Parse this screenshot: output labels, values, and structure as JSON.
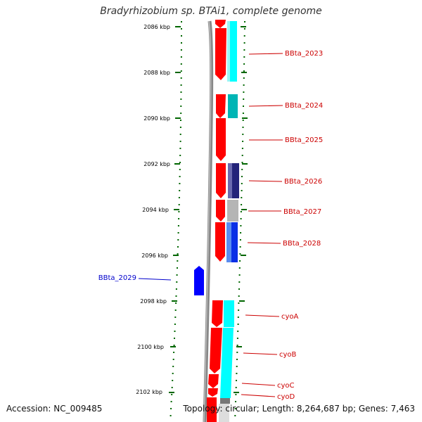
{
  "title": "Bradyrhizobium sp. BTAi1, complete genome",
  "accession": "Accession: NC_009485",
  "topology": "Topology: circular; Length: 8,264,687 bp; Genes: 7,463",
  "ticks": [
    "2086 kbp",
    "2088 kbp",
    "2090 kbp",
    "2092 kbp",
    "2094 kbp",
    "2096 kbp",
    "2098 kbp",
    "2100 kbp",
    "2102 kbp"
  ],
  "genes_right": [
    {
      "label": "BBta_2023",
      "color": "#cc0000"
    },
    {
      "label": "BBta_2024",
      "color": "#cc0000"
    },
    {
      "label": "BBta_2025",
      "color": "#cc0000"
    },
    {
      "label": "BBta_2026",
      "color": "#cc0000"
    },
    {
      "label": "BBta_2027",
      "color": "#cc0000"
    },
    {
      "label": "BBta_2028",
      "color": "#cc0000"
    },
    {
      "label": "cyoA",
      "color": "#cc0000"
    },
    {
      "label": "cyoB",
      "color": "#cc0000"
    },
    {
      "label": "cyoC",
      "color": "#cc0000"
    },
    {
      "label": "cyoD",
      "color": "#cc0000"
    }
  ],
  "genes_left": [
    {
      "label": "BBta_2029",
      "color": "#0000cc"
    }
  ],
  "colors": {
    "forward_gene": "#ff0000",
    "reverse_gene": "#0000ff",
    "backbone": "#888888",
    "tick": "#006600",
    "cog_cyan": "#00ffff",
    "cog_teal": "#00b5b5",
    "cog_navy": "#23237a",
    "cog_gray": "#b5b5b5",
    "cog_blue": "#0a2fe6"
  }
}
